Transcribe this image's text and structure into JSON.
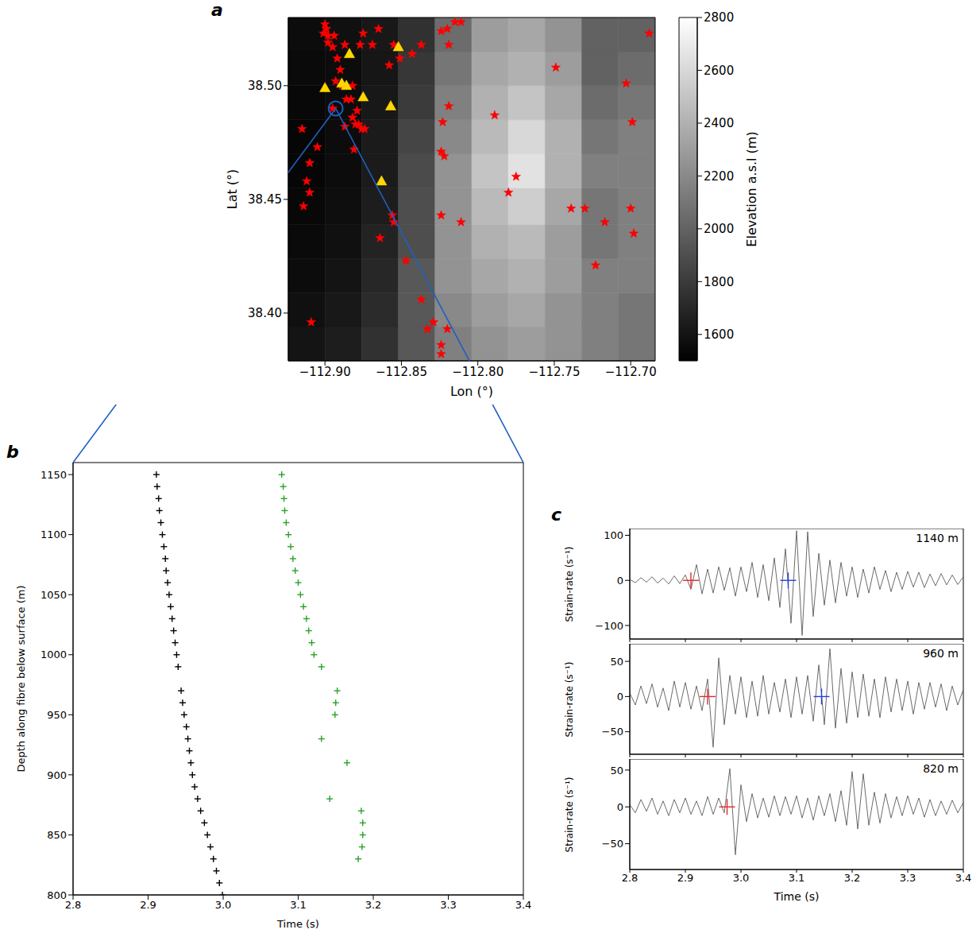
{
  "chart_data": [
    {
      "type": "scatter",
      "panel": "a",
      "xlabel": "Lon (°)",
      "ylabel": "Lat (°)",
      "xlim": [
        -112.924,
        -112.684
      ],
      "ylim": [
        38.379,
        38.53
      ],
      "xticks": [
        {
          "value": -112.9,
          "label": "−112.90"
        },
        {
          "value": -112.85,
          "label": "−112.85"
        },
        {
          "value": -112.8,
          "label": "−112.80"
        },
        {
          "value": -112.75,
          "label": "−112.75"
        },
        {
          "value": -112.7,
          "label": "−112.70"
        }
      ],
      "yticks": [
        {
          "value": 38.4,
          "label": "38.40"
        },
        38.45,
        {
          "value": 38.5,
          "label": "38.50"
        }
      ],
      "elevation": {
        "lon_edges": [
          -112.924,
          -112.9,
          -112.876,
          -112.852,
          -112.828,
          -112.804,
          -112.78,
          -112.756,
          -112.732,
          -112.708,
          -112.684
        ],
        "lat_edges": [
          38.379,
          38.394,
          38.409,
          38.424,
          38.439,
          38.455,
          38.47,
          38.485,
          38.5,
          38.515,
          38.53
        ],
        "values": [
          [
            1600,
            1650,
            1750,
            1950,
            2150,
            2250,
            2300,
            2250,
            2150,
            2100
          ],
          [
            1580,
            1620,
            1720,
            1950,
            2200,
            2300,
            2350,
            2250,
            2150,
            2100
          ],
          [
            1560,
            1600,
            1700,
            1950,
            2250,
            2350,
            2400,
            2300,
            2150,
            2150
          ],
          [
            1550,
            1580,
            1680,
            1900,
            2250,
            2400,
            2450,
            2300,
            2100,
            2150
          ],
          [
            1540,
            1570,
            1650,
            1900,
            2250,
            2450,
            2550,
            2350,
            2100,
            2150
          ],
          [
            1530,
            1560,
            1640,
            1880,
            2250,
            2500,
            2650,
            2400,
            2150,
            2150
          ],
          [
            1530,
            1560,
            1640,
            1850,
            2200,
            2450,
            2600,
            2400,
            2100,
            2150
          ],
          [
            1540,
            1560,
            1620,
            1800,
            2150,
            2400,
            2500,
            2350,
            2050,
            2100
          ],
          [
            1550,
            1560,
            1610,
            1780,
            2100,
            2350,
            2400,
            2300,
            2000,
            2050
          ],
          [
            1560,
            1580,
            1620,
            1750,
            2050,
            2300,
            2350,
            2250,
            2000,
            2000
          ]
        ],
        "colorbar": {
          "label": "Elevation a.s.l (m)",
          "range": [
            1500,
            2800
          ],
          "ticks": [
            1600,
            1800,
            2000,
            2200,
            2400,
            2600,
            2800
          ]
        }
      },
      "series": [
        {
          "marker": "star",
          "color": "#ff0000",
          "x": [
            -112.9,
            -112.899,
            -112.901,
            -112.898,
            -112.894,
            -112.898,
            -112.895,
            -112.887,
            -112.892,
            -112.89,
            -112.893,
            -112.889,
            -112.882,
            -112.886,
            -112.883,
            -112.879,
            -112.882,
            -112.88,
            -112.878,
            -112.876,
            -112.874,
            -112.887,
            -112.881,
            -112.915,
            -112.905,
            -112.91,
            -112.912,
            -112.91,
            -112.914,
            -112.909,
            -112.875,
            -112.865,
            -112.877,
            -112.869,
            -112.855,
            -112.851,
            -112.843,
            -112.837,
            -112.82,
            -112.815,
            -112.811,
            -112.824,
            -112.819,
            -112.858,
            -112.819,
            -112.823,
            -112.824,
            -112.822,
            -112.789,
            -112.775,
            -112.78,
            -112.811,
            -112.824,
            -112.856,
            -112.855,
            -112.864,
            -112.847,
            -112.837,
            -112.829,
            -112.833,
            -112.824,
            -112.824,
            -112.82,
            -112.749,
            -112.703,
            -112.699,
            -112.739,
            -112.73,
            -112.717,
            -112.7,
            -112.698,
            -112.723,
            -112.688,
            -112.895
          ],
          "y": [
            38.527,
            38.525,
            38.523,
            38.522,
            38.522,
            38.519,
            38.517,
            38.518,
            38.512,
            38.507,
            38.502,
            38.5,
            38.5,
            38.494,
            38.494,
            38.489,
            38.486,
            38.483,
            38.483,
            38.481,
            38.481,
            38.482,
            38.472,
            38.481,
            38.473,
            38.466,
            38.458,
            38.453,
            38.447,
            38.396,
            38.523,
            38.525,
            38.518,
            38.518,
            38.518,
            38.512,
            38.514,
            38.518,
            38.525,
            38.528,
            38.528,
            38.524,
            38.518,
            38.509,
            38.491,
            38.484,
            38.471,
            38.469,
            38.487,
            38.46,
            38.453,
            38.44,
            38.443,
            38.443,
            38.44,
            38.433,
            38.423,
            38.406,
            38.396,
            38.393,
            38.386,
            38.382,
            38.393,
            38.508,
            38.501,
            38.484,
            38.446,
            38.446,
            38.44,
            38.446,
            38.435,
            38.421,
            38.523,
            38.49
          ]
        },
        {
          "marker": "triangle",
          "color": "#ffd700",
          "x": [
            -112.9,
            -112.889,
            -112.886,
            -112.884,
            -112.875,
            -112.857,
            -112.852,
            -112.863
          ],
          "y": [
            38.499,
            38.501,
            38.5,
            38.514,
            38.495,
            38.491,
            38.517,
            38.458
          ]
        }
      ],
      "highlight": {
        "lon": -112.893,
        "lat": 38.49,
        "color": "#1f5fbf"
      }
    },
    {
      "type": "scatter",
      "panel": "b",
      "xlabel": "Time (s)",
      "ylabel": "Depth along fibre below surface (m)",
      "xlim": [
        2.8,
        3.4
      ],
      "ylim": [
        800,
        1160
      ],
      "xticks": [
        2.8,
        2.9,
        {
          "value": 3,
          "label": "3.0"
        },
        3.1,
        3.2,
        3.3,
        3.4
      ],
      "yticks": [
        800,
        850,
        900,
        950,
        1000,
        1050,
        1100,
        1150
      ],
      "series": [
        {
          "marker": "plus",
          "color": "#000000",
          "x": [
            2.911,
            2.912,
            2.914,
            2.915,
            2.917,
            2.919,
            2.921,
            2.923,
            2.924,
            2.926,
            2.928,
            2.93,
            2.932,
            2.934,
            2.936,
            2.938,
            2.94,
            2.944,
            2.946,
            2.948,
            2.951,
            2.953,
            2.955,
            2.957,
            2.959,
            2.962,
            2.966,
            2.97,
            2.975,
            2.979,
            2.983,
            2.987,
            2.991,
            2.995,
            2.999
          ],
          "y": [
            1150,
            1140,
            1130,
            1120,
            1110,
            1100,
            1090,
            1080,
            1070,
            1060,
            1050,
            1040,
            1030,
            1020,
            1010,
            1000,
            990,
            970,
            960,
            950,
            940,
            930,
            920,
            910,
            900,
            890,
            880,
            870,
            860,
            850,
            840,
            830,
            820,
            810,
            800
          ]
        },
        {
          "marker": "plus",
          "color": "#2ca02c",
          "x": [
            3.078,
            3.08,
            3.081,
            3.082,
            3.084,
            3.087,
            3.09,
            3.093,
            3.096,
            3.1,
            3.103,
            3.107,
            3.111,
            3.114,
            3.118,
            3.121,
            3.131,
            3.152,
            3.15,
            3.149,
            3.131,
            3.165,
            3.142,
            3.184,
            3.186,
            3.186,
            3.185,
            3.18
          ],
          "y": [
            1150,
            1140,
            1130,
            1120,
            1110,
            1100,
            1090,
            1080,
            1070,
            1060,
            1050,
            1040,
            1030,
            1020,
            1010,
            1000,
            990,
            970,
            960,
            950,
            930,
            910,
            880,
            870,
            860,
            850,
            840,
            830
          ]
        }
      ]
    },
    {
      "type": "line",
      "panel": "c",
      "annotation": "1140 m",
      "ylabel": "Strain-rate (s⁻¹)",
      "tick_labels": "y",
      "xlim": [
        2.8,
        3.4
      ],
      "ylim": [
        -130,
        115
      ],
      "xticks": [
        2.8,
        2.9,
        {
          "value": 3,
          "label": "3.0"
        },
        3.1,
        3.2,
        3.3,
        3.4
      ],
      "yticks": [
        {
          "value": -100,
          "label": "−100"
        },
        0,
        100
      ],
      "x": [
        2.8,
        2.81,
        2.82,
        2.83,
        2.84,
        2.85,
        2.86,
        2.87,
        2.88,
        2.89,
        2.9,
        2.91,
        2.92,
        2.93,
        2.94,
        2.95,
        2.96,
        2.97,
        2.98,
        2.99,
        3.0,
        3.01,
        3.02,
        3.03,
        3.04,
        3.05,
        3.06,
        3.07,
        3.08,
        3.09,
        3.1,
        3.11,
        3.12,
        3.13,
        3.14,
        3.15,
        3.16,
        3.17,
        3.18,
        3.19,
        3.2,
        3.21,
        3.22,
        3.23,
        3.24,
        3.25,
        3.26,
        3.27,
        3.28,
        3.29,
        3.3,
        3.31,
        3.32,
        3.33,
        3.34,
        3.35,
        3.36,
        3.37,
        3.38,
        3.39,
        3.4
      ],
      "series": [
        {
          "type": "line",
          "color": "#5a5a5a",
          "values": [
            2,
            -5,
            6,
            -4,
            8,
            -6,
            5,
            -8,
            10,
            -7,
            12,
            -20,
            35,
            -30,
            25,
            -28,
            30,
            -22,
            28,
            -35,
            30,
            -25,
            40,
            -38,
            35,
            -45,
            50,
            -60,
            70,
            -95,
            110,
            -122,
            108,
            -80,
            60,
            -55,
            45,
            -50,
            40,
            -35,
            30,
            -38,
            25,
            -28,
            30,
            -20,
            22,
            -25,
            18,
            -20,
            20,
            -15,
            18,
            -16,
            14,
            -12,
            15,
            -10,
            12,
            -9,
            8
          ]
        },
        {
          "type": "scatter",
          "marker": "plus",
          "color": "#e8262b",
          "x": [
            2.91
          ],
          "values": [
            0
          ]
        },
        {
          "type": "scatter",
          "marker": "plus",
          "color": "#2340e0",
          "x": [
            3.085
          ],
          "values": [
            0
          ]
        }
      ]
    },
    {
      "type": "line",
      "annotation": "960 m",
      "ylabel": "Strain-rate (s⁻¹)",
      "tick_labels": "y",
      "xlim": [
        2.8,
        3.4
      ],
      "ylim": [
        -82,
        75
      ],
      "xticks": [
        2.8,
        2.9,
        {
          "value": 3,
          "label": "3.0"
        },
        3.1,
        3.2,
        3.3,
        3.4
      ],
      "yticks": [
        {
          "value": -50,
          "label": "−50"
        },
        0,
        50
      ],
      "x": [
        2.8,
        2.81,
        2.82,
        2.83,
        2.84,
        2.85,
        2.86,
        2.87,
        2.88,
        2.89,
        2.9,
        2.91,
        2.92,
        2.93,
        2.94,
        2.95,
        2.96,
        2.97,
        2.98,
        2.99,
        3.0,
        3.01,
        3.02,
        3.03,
        3.04,
        3.05,
        3.06,
        3.07,
        3.08,
        3.09,
        3.1,
        3.11,
        3.12,
        3.13,
        3.14,
        3.15,
        3.16,
        3.17,
        3.18,
        3.19,
        3.2,
        3.21,
        3.22,
        3.23,
        3.24,
        3.25,
        3.26,
        3.27,
        3.28,
        3.29,
        3.3,
        3.31,
        3.32,
        3.33,
        3.34,
        3.35,
        3.36,
        3.37,
        3.38,
        3.39,
        3.4
      ],
      "series": [
        {
          "type": "line",
          "color": "#5a5a5a",
          "values": [
            5,
            -12,
            15,
            -10,
            18,
            -15,
            12,
            -20,
            22,
            -15,
            20,
            -18,
            15,
            -20,
            25,
            -72,
            55,
            -40,
            30,
            -25,
            28,
            -30,
            22,
            -28,
            30,
            -25,
            20,
            -22,
            25,
            -30,
            28,
            -25,
            30,
            -35,
            45,
            -40,
            68,
            -45,
            40,
            -38,
            35,
            -30,
            32,
            -28,
            25,
            -30,
            28,
            -22,
            25,
            -20,
            22,
            -25,
            20,
            -18,
            20,
            -15,
            18,
            -20,
            15,
            -12,
            10
          ]
        },
        {
          "type": "scatter",
          "marker": "plus",
          "color": "#e8262b",
          "x": [
            2.94
          ],
          "values": [
            0
          ]
        },
        {
          "type": "scatter",
          "marker": "plus",
          "color": "#2340e0",
          "x": [
            3.145
          ],
          "values": [
            0
          ]
        }
      ]
    },
    {
      "type": "line",
      "annotation": "820 m",
      "ylabel": "Strain-rate (s⁻¹)",
      "xlabel": "Time (s)",
      "xlim": [
        2.8,
        3.4
      ],
      "ylim": [
        -85,
        65
      ],
      "xticks": [
        2.8,
        2.9,
        {
          "value": 3,
          "label": "3.0"
        },
        3.1,
        3.2,
        3.3,
        3.4
      ],
      "yticks": [
        {
          "value": -50,
          "label": "−50"
        },
        0,
        50
      ],
      "x": [
        2.8,
        2.81,
        2.82,
        2.83,
        2.84,
        2.85,
        2.86,
        2.87,
        2.88,
        2.89,
        2.9,
        2.91,
        2.92,
        2.93,
        2.94,
        2.95,
        2.96,
        2.97,
        2.98,
        2.99,
        3.0,
        3.01,
        3.02,
        3.03,
        3.04,
        3.05,
        3.06,
        3.07,
        3.08,
        3.09,
        3.1,
        3.11,
        3.12,
        3.13,
        3.14,
        3.15,
        3.16,
        3.17,
        3.18,
        3.19,
        3.2,
        3.21,
        3.22,
        3.23,
        3.24,
        3.25,
        3.26,
        3.27,
        3.28,
        3.29,
        3.3,
        3.31,
        3.32,
        3.33,
        3.34,
        3.35,
        3.36,
        3.37,
        3.38,
        3.39,
        3.4
      ],
      "series": [
        {
          "type": "line",
          "color": "#5a5a5a",
          "values": [
            3,
            -8,
            10,
            -6,
            12,
            -10,
            8,
            -12,
            10,
            -8,
            12,
            -10,
            8,
            -12,
            14,
            -10,
            12,
            -8,
            52,
            -65,
            30,
            -20,
            18,
            -15,
            12,
            -14,
            15,
            -12,
            14,
            -10,
            15,
            -15,
            12,
            -18,
            15,
            -12,
            18,
            -20,
            22,
            -25,
            48,
            -30,
            45,
            -25,
            20,
            -22,
            18,
            -15,
            14,
            -12,
            15,
            -10,
            12,
            -14,
            10,
            -12,
            8,
            -10,
            9,
            -8,
            6
          ]
        },
        {
          "type": "scatter",
          "marker": "plus",
          "color": "#e8262b",
          "x": [
            2.975
          ],
          "values": [
            0
          ]
        }
      ]
    }
  ]
}
